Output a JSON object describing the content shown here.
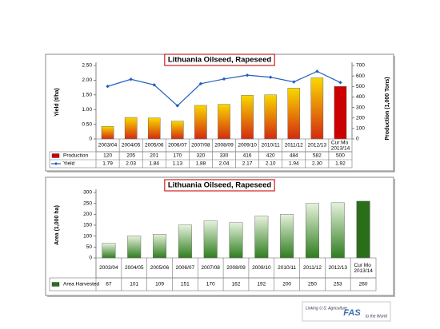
{
  "chart_data": [
    {
      "type": "bar",
      "title": "Lithuania Oilseed, Rapeseed",
      "ylabel": "Yield (t/ha)",
      "y2label": "Production (1,000 Tons)",
      "categories": [
        "2003/04",
        "2004/05",
        "2005/06",
        "2006/07",
        "2007/08",
        "2008/09",
        "2009/10",
        "2010/11",
        "2011/12",
        "2012/13",
        "Cur Mo 2013/14"
      ],
      "series": [
        {
          "name": "Production",
          "type": "bar",
          "axis": "y2",
          "color": "#d42a10",
          "gradient_to": "#f8d800",
          "current_color": "#cc0000",
          "values": [
            120,
            205,
            201,
            170,
            320,
            330,
            416,
            420,
            484,
            582,
            500
          ]
        },
        {
          "name": "Yield",
          "type": "line",
          "color": "#1f5fbf",
          "values": [
            1.79,
            2.03,
            1.84,
            1.13,
            1.88,
            2.04,
            2.17,
            2.1,
            1.94,
            2.3,
            1.92
          ],
          "value_labels": [
            "1.79",
            "2.03",
            "1.84",
            "1.13",
            "1.88",
            "2.04",
            "2.17",
            "2.10",
            "1.94",
            "2.30",
            "1.92"
          ]
        }
      ],
      "ylim": [
        0,
        2.5
      ],
      "yticks": [
        0,
        {
          "value": 0.5,
          "label": "0.50"
        },
        {
          "value": 1,
          "label": "1.00"
        },
        {
          "value": 1.5,
          "label": "1.50"
        },
        {
          "value": 2,
          "label": "2.00"
        },
        {
          "value": 2.5,
          "label": "2.50"
        }
      ],
      "y2lim": [
        0,
        700
      ],
      "y2ticks": [
        0,
        100,
        200,
        300,
        400,
        500,
        600,
        700
      ]
    },
    {
      "type": "bar",
      "title": "Lithuania Oilseed, Rapeseed",
      "ylabel": "Area (1,000 ha)",
      "categories": [
        "2003/04",
        "2004/05",
        "2005/06",
        "2006/07",
        "2007/08",
        "2008/09",
        "2009/10",
        "2010/11",
        "2011/12",
        "2012/13",
        "Cur Mo 2013/14"
      ],
      "series": [
        {
          "name": "Area Harvested",
          "type": "bar",
          "color": "#2f7d1f",
          "gradient_to": "#e6f2dc",
          "current_color": "#2a6e1a",
          "values": [
            67,
            101,
            109,
            151,
            170,
            162,
            192,
            200,
            250,
            253,
            260
          ]
        }
      ],
      "ylim": [
        0,
        300
      ],
      "yticks": [
        0,
        50,
        100,
        150,
        200,
        250,
        300
      ]
    }
  ],
  "footer": {
    "line1": "Linking U.S. Agriculture",
    "logo": "FAS",
    "line2": "to the World"
  }
}
